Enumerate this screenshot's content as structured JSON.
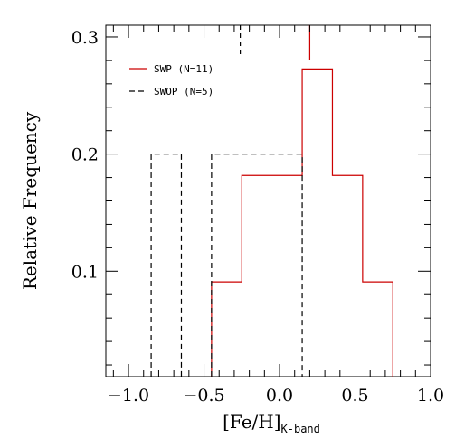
{
  "chart_data": {
    "type": "histogram",
    "title": "",
    "xlabel_main": "[Fe/H]",
    "xlabel_sub": "K-band",
    "ylabel": "Relative Frequency",
    "xlim": [
      -1.15,
      1.0
    ],
    "ylim": [
      0.01,
      0.31
    ],
    "x_ticks": [
      -1.0,
      -0.5,
      0.0,
      0.5,
      1.0
    ],
    "x_tick_labels": [
      "−1.0",
      "−0.5",
      "0.0",
      "0.5",
      "1.0"
    ],
    "y_ticks": [
      0.1,
      0.2,
      0.3
    ],
    "y_tick_labels": [
      "0.1",
      "0.2",
      "0.3"
    ],
    "legend_position": "top-left",
    "series": [
      {
        "name": "SWP (N=11)",
        "color": "#cc0000",
        "style": "solid",
        "bins": [
          {
            "x0": -0.45,
            "x1": -0.25,
            "y": 0.0909
          },
          {
            "x0": -0.25,
            "x1": 0.15,
            "y": 0.1818
          },
          {
            "x0": 0.15,
            "x1": 0.35,
            "y": 0.2727
          },
          {
            "x0": 0.35,
            "x1": 0.55,
            "y": 0.1818
          },
          {
            "x0": 0.55,
            "x1": 0.75,
            "y": 0.0909
          }
        ],
        "marker_x": 0.2
      },
      {
        "name": "SWOP (N=5)",
        "color": "#000000",
        "style": "dashed",
        "bins": [
          {
            "x0": -0.85,
            "x1": -0.65,
            "y": 0.2
          },
          {
            "x0": -0.45,
            "x1": 0.15,
            "y": 0.2
          }
        ],
        "marker_x": -0.26
      }
    ]
  }
}
